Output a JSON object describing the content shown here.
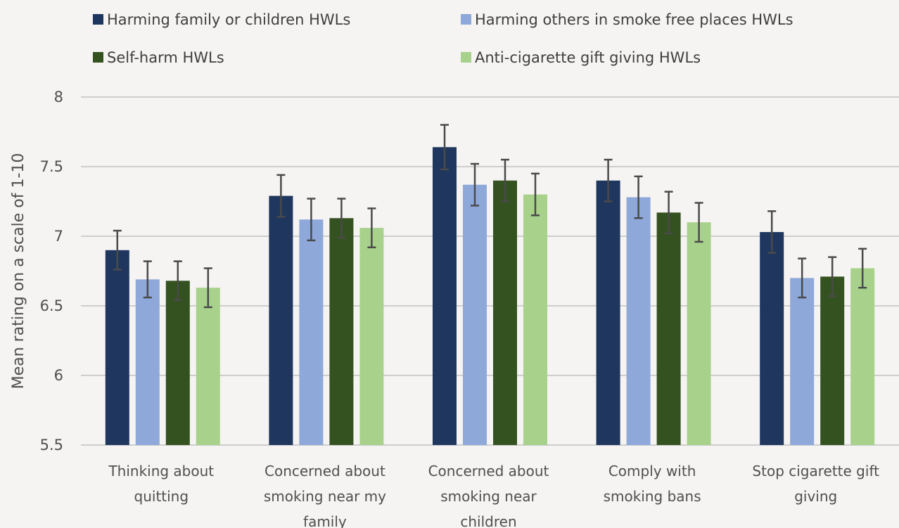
{
  "chart_data": {
    "type": "bar",
    "title": "",
    "xlabel": "",
    "ylabel": "Mean rating on a scale of 1-10",
    "ylim": [
      5.5,
      8
    ],
    "yticks": [
      "5.5",
      "6",
      "6.5",
      "7",
      "7.5",
      "8"
    ],
    "grid": true,
    "legend_position": "top",
    "categories": [
      [
        "Thinking about",
        "quitting"
      ],
      [
        "Concerned about",
        "smoking near my",
        "family"
      ],
      [
        "Concerned about",
        "smoking near",
        "children"
      ],
      [
        "Comply with",
        "smoking bans"
      ],
      [
        "Stop cigarette gift",
        "giving"
      ]
    ],
    "series": [
      {
        "name": "Harming family or children HWLs",
        "color": "#1f375f",
        "values": [
          6.9,
          7.29,
          7.64,
          7.4,
          7.03
        ],
        "errors": [
          0.14,
          0.15,
          0.16,
          0.15,
          0.15
        ]
      },
      {
        "name": "Harming others in smoke free places HWLs",
        "color": "#8ea8da",
        "values": [
          6.69,
          7.12,
          7.37,
          7.28,
          6.7
        ],
        "errors": [
          0.13,
          0.15,
          0.15,
          0.15,
          0.14
        ]
      },
      {
        "name": "Self-harm HWLs",
        "color": "#345220",
        "values": [
          6.68,
          7.13,
          7.4,
          7.17,
          6.71
        ],
        "errors": [
          0.14,
          0.14,
          0.15,
          0.15,
          0.14
        ]
      },
      {
        "name": "Anti-cigarette gift giving HWLs",
        "color": "#a8d18c",
        "values": [
          6.63,
          7.06,
          7.3,
          7.1,
          6.77
        ],
        "errors": [
          0.14,
          0.14,
          0.15,
          0.14,
          0.14
        ]
      }
    ]
  }
}
